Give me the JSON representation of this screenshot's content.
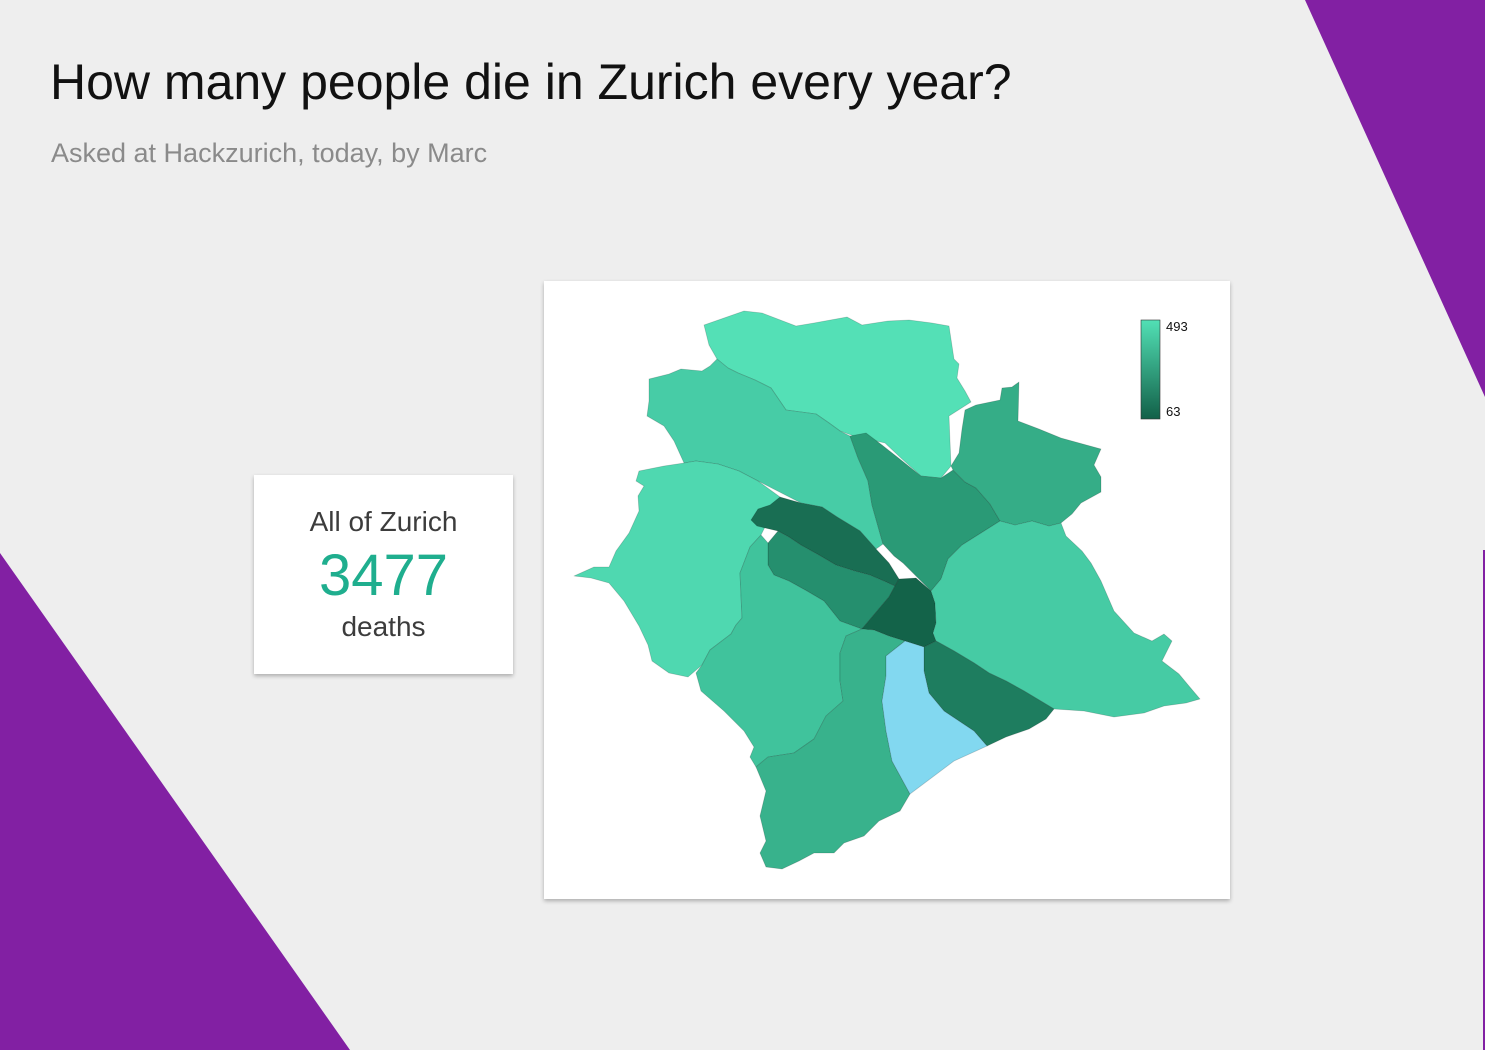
{
  "page": {
    "title": "How many people die in Zurich every year?",
    "subtitle": "Asked at Hackzurich, today, by Marc",
    "background_color": "#eeeeee",
    "accent_shape_color": "#8220a3"
  },
  "summary": {
    "label": "All of Zurich",
    "value": "3477",
    "unit": "deaths",
    "value_color": "#1fae8e"
  },
  "map": {
    "legend": {
      "max_label": "493",
      "min_label": "63",
      "max_color": "#52e0b5",
      "min_color": "#126048"
    },
    "regions": [
      {
        "name": "north",
        "color": "#54e0b6"
      },
      {
        "name": "north-west",
        "color": "#47cca6"
      },
      {
        "name": "west",
        "color": "#4fd8b0"
      },
      {
        "name": "north-centre",
        "color": "#2a9a76"
      },
      {
        "name": "north-east",
        "color": "#35ad87"
      },
      {
        "name": "centre-west-1",
        "color": "#196e53"
      },
      {
        "name": "centre-west-2",
        "color": "#258f6e"
      },
      {
        "name": "centre",
        "color": "#136349"
      },
      {
        "name": "south-west",
        "color": "#40c39c"
      },
      {
        "name": "east",
        "color": "#46cba4"
      },
      {
        "name": "south-east",
        "color": "#1e7d5f"
      },
      {
        "name": "south",
        "color": "#38b28c"
      },
      {
        "name": "lake",
        "color": "#82d8f0"
      }
    ]
  }
}
